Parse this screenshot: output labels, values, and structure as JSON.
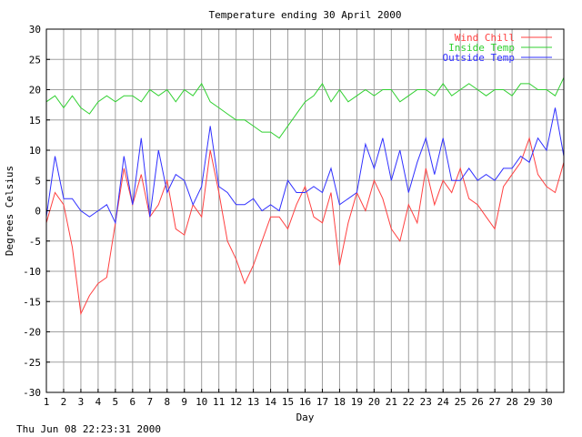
{
  "footer_timestamp": "Thu Jun 08 22:23:31 2000",
  "chart_data": {
    "type": "line",
    "title": "Temperature ending 30 April 2000",
    "xlabel": "Day",
    "ylabel": "Degrees Celsius",
    "xlim": [
      1,
      31
    ],
    "ylim": [
      -30,
      30
    ],
    "x_ticks": [
      "1",
      "2",
      "3",
      "4",
      "5",
      "6",
      "7",
      "8",
      "9",
      "10",
      "11",
      "12",
      "13",
      "14",
      "15",
      "16",
      "17",
      "18",
      "19",
      "20",
      "21",
      "22",
      "23",
      "24",
      "25",
      "26",
      "27",
      "28",
      "29",
      "30"
    ],
    "y_ticks": [
      30,
      25,
      20,
      15,
      10,
      5,
      0,
      -5,
      -10,
      -15,
      -20,
      -25,
      -30
    ],
    "grid": true,
    "legend_position": "top-right",
    "x": [
      1.0,
      1.5,
      2.0,
      2.5,
      3.0,
      3.5,
      4.0,
      4.5,
      5.0,
      5.5,
      6.0,
      6.5,
      7.0,
      7.5,
      8.0,
      8.5,
      9.0,
      9.5,
      10.0,
      10.5,
      11.0,
      11.5,
      12.0,
      12.5,
      13.0,
      13.5,
      14.0,
      14.5,
      15.0,
      15.5,
      16.0,
      16.5,
      17.0,
      17.5,
      18.0,
      18.5,
      19.0,
      19.5,
      20.0,
      20.5,
      21.0,
      21.5,
      22.0,
      22.5,
      23.0,
      23.5,
      24.0,
      24.5,
      25.0,
      25.5,
      26.0,
      26.5,
      27.0,
      27.5,
      28.0,
      28.5,
      29.0,
      29.5,
      30.0,
      30.5,
      31.0
    ],
    "series": [
      {
        "name": "Wind Chill",
        "color": "#ff4040",
        "values": [
          -2,
          3,
          1,
          -6,
          -17,
          -14,
          -12,
          -11,
          -2,
          7,
          1,
          6,
          -1,
          1,
          5,
          -3,
          -4,
          1,
          -1,
          10,
          3,
          -5,
          -8,
          -12,
          -9,
          -5,
          -1,
          -1,
          -3,
          1,
          4,
          -1,
          -2,
          3,
          -9,
          -2,
          3,
          0,
          5,
          2,
          -3,
          -5,
          1,
          -2,
          7,
          1,
          5,
          3,
          7,
          2,
          1,
          -1,
          -3,
          4,
          6,
          8,
          12,
          6,
          4,
          3,
          8
        ]
      },
      {
        "name": "Inside Temp",
        "color": "#30d030",
        "values": [
          18,
          19,
          17,
          19,
          17,
          16,
          18,
          19,
          18,
          19,
          19,
          18,
          20,
          19,
          20,
          18,
          20,
          19,
          21,
          18,
          17,
          16,
          15,
          15,
          14,
          13,
          13,
          12,
          14,
          16,
          18,
          19,
          21,
          18,
          20,
          18,
          19,
          20,
          19,
          20,
          20,
          18,
          19,
          20,
          20,
          19,
          21,
          19,
          20,
          21,
          20,
          19,
          20,
          20,
          19,
          21,
          21,
          20,
          20,
          19,
          22
        ]
      },
      {
        "name": "Outside Temp",
        "color": "#3030ff",
        "values": [
          -1,
          9,
          2,
          2,
          0,
          -1,
          0,
          1,
          -2,
          9,
          1,
          12,
          -1,
          10,
          3,
          6,
          5,
          1,
          4,
          14,
          4,
          3,
          1,
          1,
          2,
          0,
          1,
          0,
          5,
          3,
          3,
          4,
          3,
          7,
          1,
          2,
          3,
          11,
          7,
          12,
          5,
          10,
          3,
          8,
          12,
          6,
          12,
          5,
          5,
          7,
          5,
          6,
          5,
          7,
          7,
          9,
          8,
          12,
          10,
          17,
          9
        ]
      }
    ]
  }
}
